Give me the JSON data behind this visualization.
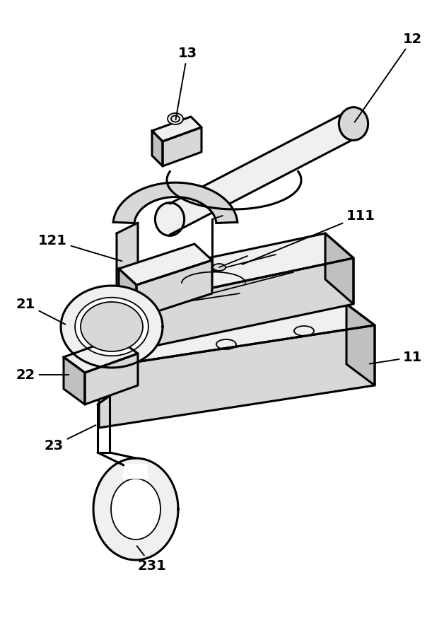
{
  "background_color": "#ffffff",
  "line_color": "#000000",
  "label_color": "#000000",
  "figsize": [
    6.11,
    8.91
  ],
  "dpi": 100,
  "label_fontsize": 14,
  "label_fontweight": "bold",
  "lw_main": 2.2,
  "lw_thin": 1.3,
  "lw_anno": 1.4
}
